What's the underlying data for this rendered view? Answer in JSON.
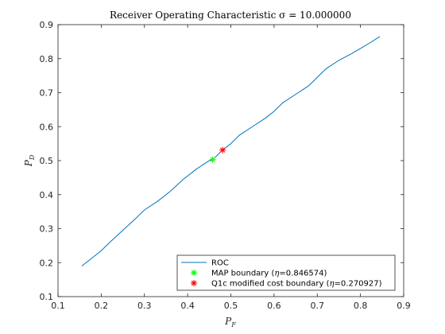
{
  "chart_data": {
    "type": "line",
    "title": "Receiver Operating Characteristic σ = 10.000000",
    "xlabel": "P_F",
    "ylabel": "P_D",
    "xlim": [
      0.1,
      0.9
    ],
    "ylim": [
      0.1,
      0.9
    ],
    "xticks": [
      "0.1",
      "0.2",
      "0.3",
      "0.4",
      "0.5",
      "0.6",
      "0.7",
      "0.8",
      "0.9"
    ],
    "yticks": [
      "0.1",
      "0.2",
      "0.3",
      "0.4",
      "0.5",
      "0.6",
      "0.7",
      "0.8",
      "0.9"
    ],
    "grid": false,
    "legend_position": "bottom-right",
    "series": [
      {
        "name": "ROC",
        "kind": "line",
        "color": "#0072bd",
        "x": [
          0.155,
          0.18,
          0.2,
          0.22,
          0.25,
          0.28,
          0.3,
          0.33,
          0.36,
          0.39,
          0.42,
          0.45,
          0.46,
          0.48,
          0.5,
          0.52,
          0.55,
          0.58,
          0.6,
          0.62,
          0.65,
          0.68,
          0.7,
          0.72,
          0.75,
          0.78,
          0.8,
          0.82,
          0.845
        ],
        "y": [
          0.19,
          0.215,
          0.235,
          0.26,
          0.295,
          0.33,
          0.355,
          0.38,
          0.41,
          0.445,
          0.475,
          0.5,
          0.505,
          0.53,
          0.55,
          0.575,
          0.6,
          0.625,
          0.645,
          0.67,
          0.695,
          0.72,
          0.745,
          0.77,
          0.795,
          0.815,
          0.83,
          0.845,
          0.865
        ]
      },
      {
        "name": "MAP boundary (η=0.846574)",
        "kind": "marker",
        "color": "#00ff00",
        "x": [
          0.458
        ],
        "y": [
          0.503
        ]
      },
      {
        "name": "Q1c modified cost boundary (η=0.270927)",
        "kind": "marker",
        "color": "#ff0000",
        "x": [
          0.481
        ],
        "y": [
          0.531
        ]
      }
    ]
  }
}
